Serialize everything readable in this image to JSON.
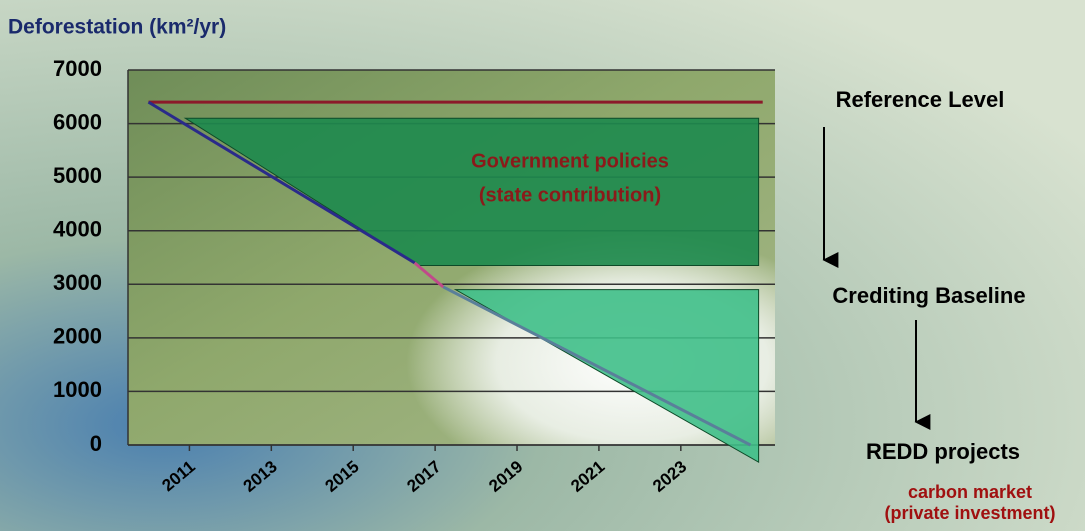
{
  "chart_data": {
    "type": "line",
    "title": "Deforestation (km²/yr)",
    "ylim": [
      0,
      7000
    ],
    "yticks": [
      0,
      1000,
      2000,
      3000,
      4000,
      5000,
      6000,
      7000
    ],
    "xlim": [
      2009.5,
      2025.3
    ],
    "xticks": [
      2011,
      2013,
      2015,
      2017,
      2019,
      2021,
      2023
    ],
    "grid": true,
    "areas": [
      {
        "color": "#1d8a4e",
        "x": [
          2010.9,
          2024.9,
          2024.9,
          2016.6
        ],
        "values": [
          6100,
          6100,
          3350,
          3350
        ]
      },
      {
        "color": "#3fbf88",
        "x": [
          2017.5,
          2024.9,
          2024.9
        ],
        "values": [
          2900,
          2900,
          -320
        ]
      }
    ],
    "series": [
      {
        "color": "#8b1a2a",
        "x": [
          2010,
          2025
        ],
        "values": [
          6400,
          6400
        ]
      },
      {
        "color": "#2a2a8a",
        "x": [
          2010,
          2016.5
        ],
        "values": [
          6400,
          3400
        ]
      },
      {
        "color": "#c04a8a",
        "x": [
          2016.5,
          2017.2
        ],
        "values": [
          3400,
          2950
        ]
      },
      {
        "color": "#5a7f9a",
        "x": [
          2017.2,
          2024.7
        ],
        "values": [
          2950,
          0
        ]
      }
    ],
    "annotations": [
      "Government policies",
      "(state contribution)",
      "Reference Level",
      "Crediting Baseline",
      "REDD projects",
      "carbon market",
      "(private investment)"
    ]
  }
}
